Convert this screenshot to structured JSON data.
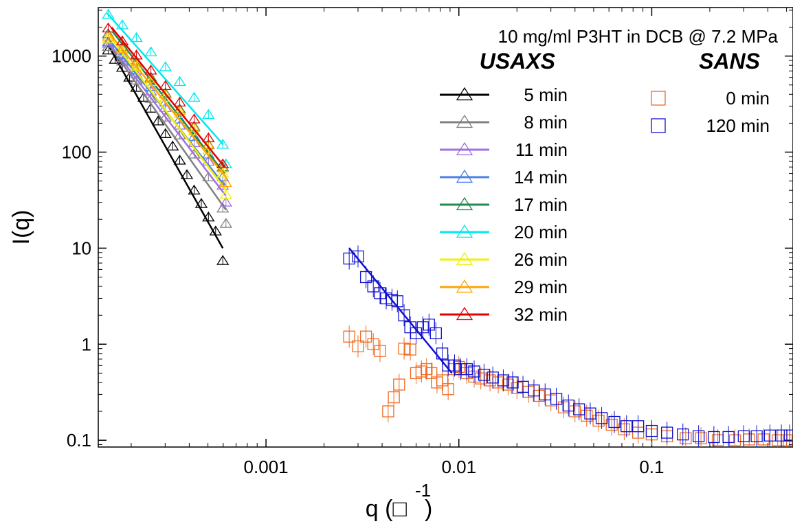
{
  "chart_data": {
    "type": "scatter",
    "title": "10 mg/ml P3HT in DCB @ 7.2 MPa",
    "xlabel": "q (□",
    "xlabel_sup": "-1",
    "xlabel_close": ")",
    "ylabel": "I(q)",
    "xscale": "log",
    "yscale": "log",
    "xlim": [
      0.000135,
      0.54
    ],
    "ylim": [
      0.085,
      3200
    ],
    "x_ticks": [
      {
        "value": 0.001,
        "label": "0.001"
      },
      {
        "value": 0.01,
        "label": "0.01"
      },
      {
        "value": 0.1,
        "label": "0.1"
      }
    ],
    "y_ticks": [
      {
        "value": 0.1,
        "label": "0.1"
      },
      {
        "value": 1,
        "label": "1"
      },
      {
        "value": 10,
        "label": "10"
      },
      {
        "value": 100,
        "label": "100"
      },
      {
        "value": 1000,
        "label": "1000"
      }
    ],
    "grid": false,
    "legend_position": "top-right",
    "legend_groups": [
      {
        "heading": "USAXS",
        "marker": "triangle",
        "entries": [
          {
            "label": "5 min",
            "color": "#000000"
          },
          {
            "label": "8 min",
            "color": "#808080"
          },
          {
            "label": "11 min",
            "color": "#a070e0"
          },
          {
            "label": "14 min",
            "color": "#4f7fe8"
          },
          {
            "label": "17 min",
            "color": "#1f8a4c"
          },
          {
            "label": "20 min",
            "color": "#00e8f0"
          },
          {
            "label": "26 min",
            "color": "#f0f000"
          },
          {
            "label": "29 min",
            "color": "#ffa500"
          },
          {
            "label": "32 min",
            "color": "#e00000"
          }
        ]
      },
      {
        "heading": "SANS",
        "marker": "square",
        "entries": [
          {
            "label": "0 min",
            "color": "#f06a20"
          },
          {
            "label": "120 min",
            "color": "#1010d0"
          }
        ]
      }
    ],
    "series": [
      {
        "name": "5 min",
        "group": "USAXS",
        "color": "#000000",
        "marker": "triangle",
        "points": [
          [
            0.000152,
            1150
          ],
          [
            0.000165,
            920
          ],
          [
            0.00018,
            760
          ],
          [
            0.000196,
            600
          ],
          [
            0.000213,
            470
          ],
          [
            0.000232,
            370
          ],
          [
            0.000253,
            285
          ],
          [
            0.000276,
            210
          ],
          [
            0.000301,
            155
          ],
          [
            0.000328,
            115
          ],
          [
            0.000357,
            82
          ],
          [
            0.000389,
            58
          ],
          [
            0.000424,
            40
          ],
          [
            0.000462,
            29
          ],
          [
            0.000503,
            21
          ],
          [
            0.000548,
            15
          ],
          [
            0.000597,
            7.4
          ]
        ],
        "fit": [
          [
            0.000152,
            1300
          ],
          [
            0.000597,
            10
          ]
        ]
      },
      {
        "name": "8 min",
        "group": "USAXS",
        "color": "#808080",
        "marker": "triangle",
        "points": [
          [
            0.000152,
            1250
          ],
          [
            0.00018,
            880
          ],
          [
            0.000213,
            560
          ],
          [
            0.000253,
            360
          ],
          [
            0.000301,
            230
          ],
          [
            0.000357,
            150
          ],
          [
            0.000424,
            95
          ],
          [
            0.000503,
            55
          ],
          [
            0.000597,
            26
          ],
          [
            0.00062,
            18
          ]
        ],
        "fit": [
          [
            0.000152,
            1350
          ],
          [
            0.00062,
            25
          ]
        ]
      },
      {
        "name": "11 min",
        "group": "USAXS",
        "color": "#a070e0",
        "marker": "triangle",
        "points": [
          [
            0.000152,
            1350
          ],
          [
            0.00018,
            960
          ],
          [
            0.000213,
            650
          ],
          [
            0.000253,
            430
          ],
          [
            0.000301,
            290
          ],
          [
            0.000357,
            190
          ],
          [
            0.000424,
            125
          ],
          [
            0.000503,
            80
          ],
          [
            0.000597,
            45
          ],
          [
            0.00062,
            30
          ]
        ],
        "fit": [
          [
            0.000152,
            1400
          ],
          [
            0.00062,
            35
          ]
        ]
      },
      {
        "name": "14 min",
        "group": "USAXS",
        "color": "#4f7fe8",
        "marker": "triangle",
        "points": [
          [
            0.000152,
            1400
          ],
          [
            0.00018,
            1020
          ],
          [
            0.000213,
            710
          ],
          [
            0.000253,
            480
          ],
          [
            0.000301,
            330
          ],
          [
            0.000357,
            220
          ],
          [
            0.000424,
            145
          ],
          [
            0.000503,
            95
          ],
          [
            0.000597,
            55
          ]
        ],
        "fit": [
          [
            0.000155,
            1450
          ],
          [
            0.00061,
            45
          ]
        ]
      },
      {
        "name": "17 min",
        "group": "USAXS",
        "color": "#1f8a4c",
        "marker": "triangle",
        "points": [
          [
            0.000152,
            1700
          ],
          [
            0.00018,
            1250
          ],
          [
            0.000213,
            880
          ],
          [
            0.000253,
            600
          ],
          [
            0.000301,
            410
          ],
          [
            0.000357,
            280
          ],
          [
            0.000424,
            185
          ],
          [
            0.000503,
            120
          ],
          [
            0.000597,
            70
          ]
        ],
        "fit": [
          [
            0.00016,
            1800
          ],
          [
            0.00061,
            60
          ]
        ]
      },
      {
        "name": "20 min",
        "group": "USAXS",
        "color": "#00e8f0",
        "marker": "triangle",
        "points": [
          [
            0.000152,
            2700
          ],
          [
            0.00018,
            2100
          ],
          [
            0.000213,
            1550
          ],
          [
            0.000253,
            1100
          ],
          [
            0.000301,
            770
          ],
          [
            0.000357,
            540
          ],
          [
            0.000424,
            370
          ],
          [
            0.000503,
            245
          ],
          [
            0.000597,
            120
          ],
          [
            0.00062,
            75
          ]
        ],
        "fit": [
          [
            0.00015,
            2800
          ],
          [
            0.0006,
            120
          ]
        ]
      },
      {
        "name": "26 min",
        "group": "USAXS",
        "color": "#f0f000",
        "marker": "triangle",
        "points": [
          [
            0.000152,
            1500
          ],
          [
            0.00018,
            1100
          ],
          [
            0.000213,
            780
          ],
          [
            0.000253,
            540
          ],
          [
            0.000301,
            370
          ],
          [
            0.000357,
            250
          ],
          [
            0.000424,
            165
          ],
          [
            0.000503,
            105
          ],
          [
            0.000597,
            60
          ],
          [
            0.00062,
            36
          ]
        ],
        "fit": [
          [
            0.000155,
            1600
          ],
          [
            0.00062,
            40
          ]
        ]
      },
      {
        "name": "29 min",
        "group": "USAXS",
        "color": "#ffa500",
        "marker": "triangle",
        "points": [
          [
            0.000152,
            1600
          ],
          [
            0.00018,
            1180
          ],
          [
            0.000213,
            840
          ],
          [
            0.000253,
            580
          ],
          [
            0.000301,
            400
          ],
          [
            0.000357,
            270
          ],
          [
            0.000424,
            180
          ],
          [
            0.000503,
            118
          ],
          [
            0.000597,
            68
          ],
          [
            0.00062,
            48
          ]
        ],
        "fit": [
          [
            0.000155,
            1700
          ],
          [
            0.00062,
            55
          ]
        ]
      },
      {
        "name": "32 min",
        "group": "USAXS",
        "color": "#e00000",
        "marker": "triangle",
        "points": [
          [
            0.000152,
            1950
          ],
          [
            0.00018,
            1430
          ],
          [
            0.000213,
            1020
          ],
          [
            0.000253,
            710
          ],
          [
            0.000301,
            490
          ],
          [
            0.000357,
            330
          ],
          [
            0.000424,
            220
          ],
          [
            0.000503,
            140
          ],
          [
            0.000597,
            75
          ]
        ],
        "fit": [
          [
            0.000158,
            2000
          ],
          [
            0.00061,
            70
          ]
        ]
      },
      {
        "name": "0 min",
        "group": "SANS",
        "color": "#f06a20",
        "marker": "square",
        "points": [
          [
            0.0027,
            1.2
          ],
          [
            0.003,
            0.95
          ],
          [
            0.0033,
            1.2
          ],
          [
            0.0036,
            1.0
          ],
          [
            0.0039,
            0.85
          ],
          [
            0.0043,
            0.2
          ],
          [
            0.0046,
            0.28
          ],
          [
            0.0049,
            0.38
          ],
          [
            0.0052,
            0.9
          ],
          [
            0.0056,
            0.88
          ],
          [
            0.006,
            0.5
          ],
          [
            0.0064,
            0.52
          ],
          [
            0.0068,
            0.55
          ],
          [
            0.0072,
            0.5
          ],
          [
            0.0077,
            0.4
          ],
          [
            0.0082,
            0.42
          ],
          [
            0.0088,
            0.34
          ],
          [
            0.0094,
            0.55
          ],
          [
            0.01,
            0.58
          ],
          [
            0.011,
            0.5
          ],
          [
            0.012,
            0.46
          ],
          [
            0.013,
            0.44
          ],
          [
            0.0145,
            0.42
          ],
          [
            0.016,
            0.4
          ],
          [
            0.018,
            0.38
          ],
          [
            0.02,
            0.35
          ],
          [
            0.023,
            0.32
          ],
          [
            0.026,
            0.29
          ],
          [
            0.03,
            0.26
          ],
          [
            0.035,
            0.22
          ],
          [
            0.04,
            0.2
          ],
          [
            0.046,
            0.18
          ],
          [
            0.053,
            0.16
          ],
          [
            0.062,
            0.145
          ],
          [
            0.072,
            0.13
          ],
          [
            0.085,
            0.12
          ],
          [
            0.1,
            0.115
          ],
          [
            0.12,
            0.11
          ],
          [
            0.15,
            0.105
          ],
          [
            0.18,
            0.105
          ],
          [
            0.22,
            0.1
          ],
          [
            0.27,
            0.1
          ],
          [
            0.32,
            0.102
          ],
          [
            0.38,
            0.102
          ],
          [
            0.45,
            0.1
          ],
          [
            0.5,
            0.1
          ]
        ]
      },
      {
        "name": "120 min",
        "group": "SANS",
        "color": "#1010d0",
        "marker": "square",
        "points": [
          [
            0.0027,
            7.8
          ],
          [
            0.003,
            8.2
          ],
          [
            0.0033,
            5.0
          ],
          [
            0.0036,
            4.0
          ],
          [
            0.0039,
            3.4
          ],
          [
            0.0042,
            3.0
          ],
          [
            0.0045,
            2.9
          ],
          [
            0.0048,
            2.8
          ],
          [
            0.0052,
            2.0
          ],
          [
            0.0056,
            1.5
          ],
          [
            0.006,
            1.3
          ],
          [
            0.0065,
            1.5
          ],
          [
            0.007,
            1.6
          ],
          [
            0.0076,
            1.3
          ],
          [
            0.0082,
            0.8
          ],
          [
            0.0088,
            0.6
          ],
          [
            0.0095,
            0.6
          ],
          [
            0.0102,
            0.55
          ],
          [
            0.011,
            0.55
          ],
          [
            0.012,
            0.52
          ],
          [
            0.0135,
            0.48
          ],
          [
            0.015,
            0.45
          ],
          [
            0.017,
            0.42
          ],
          [
            0.019,
            0.4
          ],
          [
            0.0215,
            0.36
          ],
          [
            0.0245,
            0.33
          ],
          [
            0.028,
            0.3
          ],
          [
            0.032,
            0.27
          ],
          [
            0.037,
            0.23
          ],
          [
            0.042,
            0.21
          ],
          [
            0.048,
            0.19
          ],
          [
            0.055,
            0.17
          ],
          [
            0.064,
            0.155
          ],
          [
            0.074,
            0.14
          ],
          [
            0.085,
            0.14
          ],
          [
            0.1,
            0.125
          ],
          [
            0.12,
            0.12
          ],
          [
            0.145,
            0.115
          ],
          [
            0.175,
            0.11
          ],
          [
            0.21,
            0.108
          ],
          [
            0.25,
            0.108
          ],
          [
            0.3,
            0.11
          ],
          [
            0.35,
            0.11
          ],
          [
            0.41,
            0.112
          ],
          [
            0.47,
            0.112
          ],
          [
            0.52,
            0.112
          ]
        ],
        "fit": [
          [
            0.0027,
            10
          ],
          [
            0.0092,
            0.5
          ]
        ]
      }
    ]
  }
}
